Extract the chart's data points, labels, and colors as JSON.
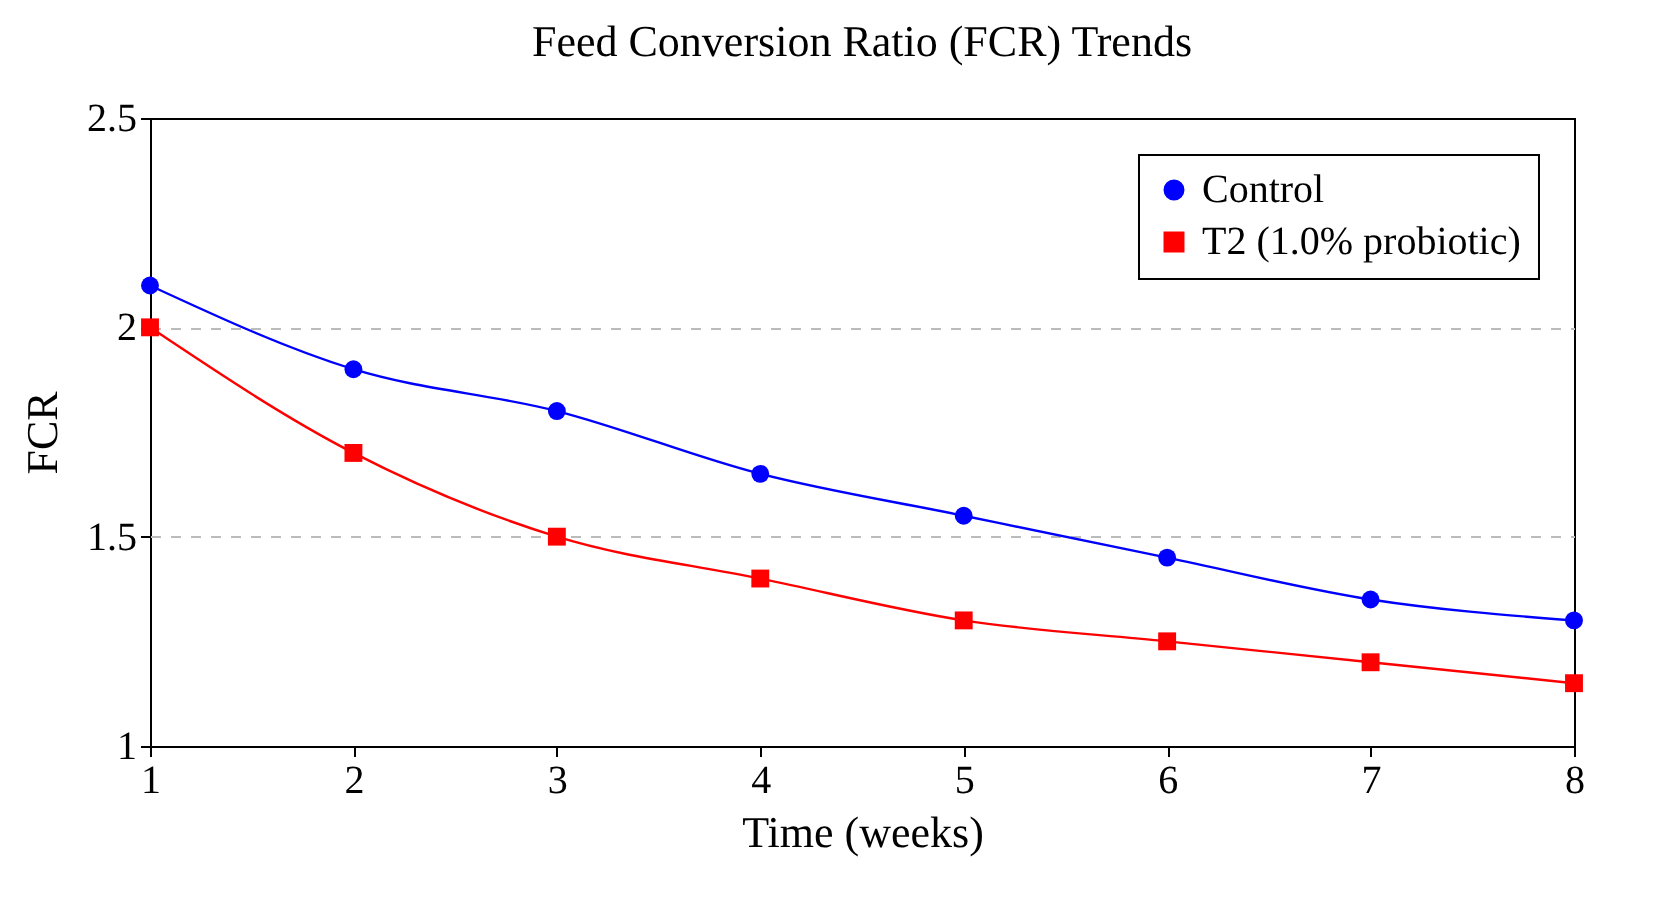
{
  "chart_data": {
    "type": "line",
    "title": "Feed Conversion Ratio (FCR) Trends",
    "xlabel": "Time (weeks)",
    "ylabel": "FCR",
    "x": [
      1,
      2,
      3,
      4,
      5,
      6,
      7,
      8
    ],
    "series": [
      {
        "name": "Control",
        "color": "#0000ff",
        "marker": "circle",
        "values": [
          2.1,
          1.9,
          1.8,
          1.65,
          1.55,
          1.45,
          1.35,
          1.3
        ]
      },
      {
        "name": "T2 (1.0% probiotic)",
        "color": "#ff0000",
        "marker": "square",
        "values": [
          2.0,
          1.7,
          1.5,
          1.4,
          1.3,
          1.25,
          1.2,
          1.15
        ]
      }
    ],
    "xlim": [
      1,
      8
    ],
    "xticks": [
      1,
      2,
      3,
      4,
      5,
      6,
      7,
      8
    ],
    "ylim": [
      1,
      2.5
    ],
    "yticks": [
      1,
      1.5,
      2,
      2.5
    ],
    "grid": "y",
    "legend": "top right",
    "line_style": "solid"
  }
}
